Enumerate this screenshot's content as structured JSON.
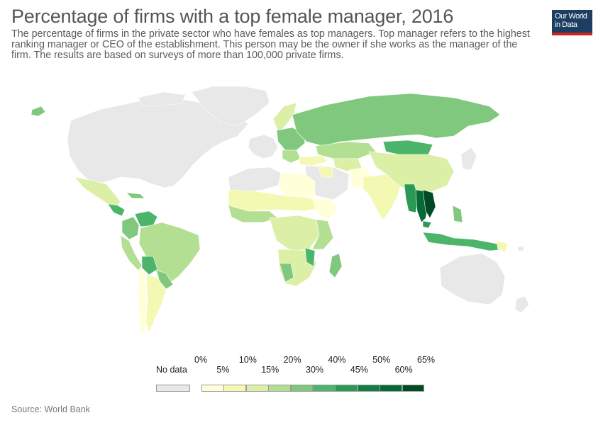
{
  "header": {
    "title": "Percentage of firms with a top female manager, 2016",
    "subtitle": "The percentage of firms in the private sector who have females as top managers. Top manager refers to the highest ranking manager or CEO of the establishment. This person may be the owner if she works as the manager of the firm. The results are based on surveys of more than 100,000 private firms."
  },
  "logo": {
    "line1": "Our World",
    "line2": "in Data"
  },
  "legend": {
    "no_data_label": "No data",
    "no_data_color": "#e8e8e8",
    "top_ticks": [
      "0%",
      "10%",
      "20%",
      "40%",
      "50%",
      "65%"
    ],
    "bottom_ticks": [
      "5%",
      "15%",
      "30%",
      "45%",
      "60%"
    ],
    "bins": [
      {
        "from": 0,
        "to": 5,
        "color": "#ffffd9"
      },
      {
        "from": 5,
        "to": 10,
        "color": "#f3f9b3"
      },
      {
        "from": 10,
        "to": 15,
        "color": "#dcefa6"
      },
      {
        "from": 15,
        "to": 20,
        "color": "#b3df92"
      },
      {
        "from": 20,
        "to": 30,
        "color": "#80c87e"
      },
      {
        "from": 30,
        "to": 40,
        "color": "#4db56b"
      },
      {
        "from": 40,
        "to": 45,
        "color": "#2b9953"
      },
      {
        "from": 45,
        "to": 50,
        "color": "#127d44"
      },
      {
        "from": 50,
        "to": 60,
        "color": "#066a37"
      },
      {
        "from": 60,
        "to": 65,
        "color": "#004a24"
      }
    ]
  },
  "source": "Source: World Bank"
}
